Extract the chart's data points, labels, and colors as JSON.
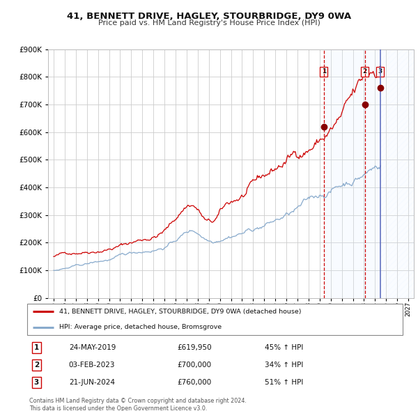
{
  "title_line1": "41, BENNETT DRIVE, HAGLEY, STOURBRIDGE, DY9 0WA",
  "title_line2": "Price paid vs. HM Land Registry's House Price Index (HPI)",
  "legend_red": "41, BENNETT DRIVE, HAGLEY, STOURBRIDGE, DY9 0WA (detached house)",
  "legend_blue": "HPI: Average price, detached house, Bromsgrove",
  "sale1_date": "24-MAY-2019",
  "sale1_price": "£619,950",
  "sale1_hpi": "45% ↑ HPI",
  "sale1_year": 2019.38,
  "sale1_value": 619950,
  "sale2_date": "03-FEB-2023",
  "sale2_price": "£700,000",
  "sale2_hpi": "34% ↑ HPI",
  "sale2_year": 2023.09,
  "sale2_value": 700000,
  "sale3_date": "21-JUN-2024",
  "sale3_price": "£760,000",
  "sale3_hpi": "51% ↑ HPI",
  "sale3_year": 2024.47,
  "sale3_value": 760000,
  "ylim_min": 0,
  "ylim_max": 900000,
  "xlim_min": 1994.5,
  "xlim_max": 2027.5,
  "plot_bg_color": "#ffffff",
  "grid_color": "#cccccc",
  "red_line_color": "#cc0000",
  "blue_line_color": "#88aacc",
  "shade_fill_color": "#ddeeff",
  "dashed_vline_color": "#cc0000",
  "solid_vline_color": "#5566bb",
  "footer_text": "Contains HM Land Registry data © Crown copyright and database right 2024.\nThis data is licensed under the Open Government Licence v3.0."
}
